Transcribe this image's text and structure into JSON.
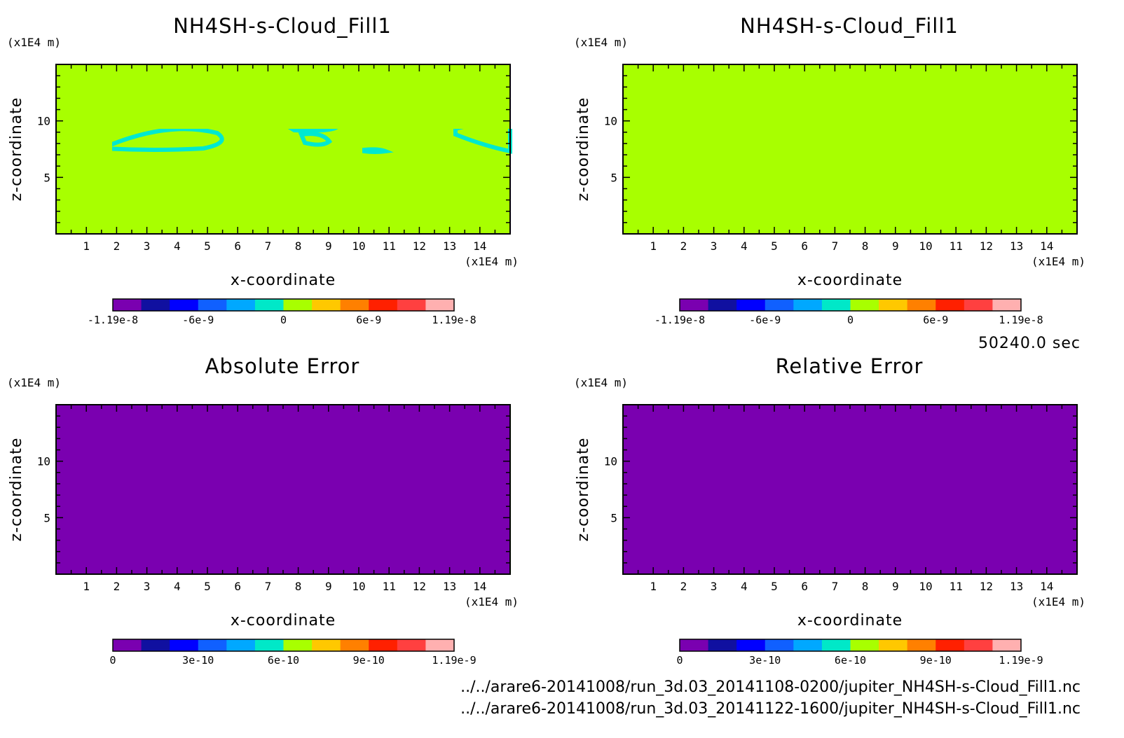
{
  "time_label": "50240.0 sec",
  "files": [
    "../../arare6-20141008/run_3d.03_20141108-0200/jupiter_NH4SH-s-Cloud_Fill1.nc",
    "../../arare6-20141008/run_3d.03_20141122-1600/jupiter_NH4SH-s-Cloud_Fill1.nc"
  ],
  "colors": {
    "field_background": "#a8ff00",
    "contour": "#00e8d0",
    "error_background": "#7a00b0",
    "relative_patch": "#ffffff"
  },
  "colorbar_palette": [
    "#7a00b0",
    "#1010a0",
    "#0000ff",
    "#1060ff",
    "#00a8ff",
    "#00e8c8",
    "#a8ff00",
    "#ffc800",
    "#ff8000",
    "#ff2000",
    "#ff4040",
    "#ffb0b0"
  ],
  "chart_data": [
    {
      "type": "heatmap",
      "title": "NH4SH-s-Cloud_Fill1",
      "xlabel": "x-coordinate",
      "ylabel": "z-coordinate",
      "x_unit": "(x1E4 m)",
      "y_unit": "(x1E4 m)",
      "xlim": [
        0,
        15
      ],
      "ylim": [
        0,
        15
      ],
      "x_ticks": [
        "1",
        "2",
        "3",
        "4",
        "5",
        "6",
        "7",
        "8",
        "9",
        "10",
        "11",
        "12",
        "13",
        "14"
      ],
      "y_ticks": [
        "5",
        "10"
      ],
      "colorbar": {
        "min": -1.19e-08,
        "max": 1.19e-08,
        "labels": [
          "-1.19e-8",
          "-6e-9",
          "0",
          "6e-9",
          "1.19e-8"
        ]
      }
    },
    {
      "type": "heatmap",
      "title": "NH4SH-s-Cloud_Fill1",
      "xlabel": "x-coordinate",
      "ylabel": "z-coordinate",
      "x_unit": "(x1E4 m)",
      "y_unit": "(x1E4 m)",
      "xlim": [
        0,
        15
      ],
      "ylim": [
        0,
        15
      ],
      "x_ticks": [
        "1",
        "2",
        "3",
        "4",
        "5",
        "6",
        "7",
        "8",
        "9",
        "10",
        "11",
        "12",
        "13",
        "14"
      ],
      "y_ticks": [
        "5",
        "10"
      ],
      "colorbar": {
        "min": -1.19e-08,
        "max": 1.19e-08,
        "labels": [
          "-1.19e-8",
          "-6e-9",
          "0",
          "6e-9",
          "1.19e-8"
        ]
      }
    },
    {
      "type": "heatmap",
      "title": "Absolute Error",
      "xlabel": "x-coordinate",
      "ylabel": "z-coordinate",
      "x_unit": "(x1E4 m)",
      "y_unit": "(x1E4 m)",
      "xlim": [
        0,
        15
      ],
      "ylim": [
        0,
        15
      ],
      "x_ticks": [
        "1",
        "2",
        "3",
        "4",
        "5",
        "6",
        "7",
        "8",
        "9",
        "10",
        "11",
        "12",
        "13",
        "14"
      ],
      "y_ticks": [
        "5",
        "10"
      ],
      "colorbar": {
        "min": 0,
        "max": 1.19e-09,
        "labels": [
          "0",
          "3e-10",
          "6e-10",
          "9e-10",
          "1.19e-9"
        ]
      }
    },
    {
      "type": "heatmap",
      "title": "Relative Error",
      "xlabel": "x-coordinate",
      "ylabel": "z-coordinate",
      "x_unit": "(x1E4 m)",
      "y_unit": "(x1E4 m)",
      "xlim": [
        0,
        15
      ],
      "ylim": [
        0,
        15
      ],
      "x_ticks": [
        "1",
        "2",
        "3",
        "4",
        "5",
        "6",
        "7",
        "8",
        "9",
        "10",
        "11",
        "12",
        "13",
        "14"
      ],
      "y_ticks": [
        "5",
        "10"
      ],
      "colorbar": {
        "min": 0,
        "max": 1.19e-09,
        "labels": [
          "0",
          "3e-10",
          "6e-10",
          "9e-10",
          "1.19e-9"
        ]
      }
    }
  ]
}
